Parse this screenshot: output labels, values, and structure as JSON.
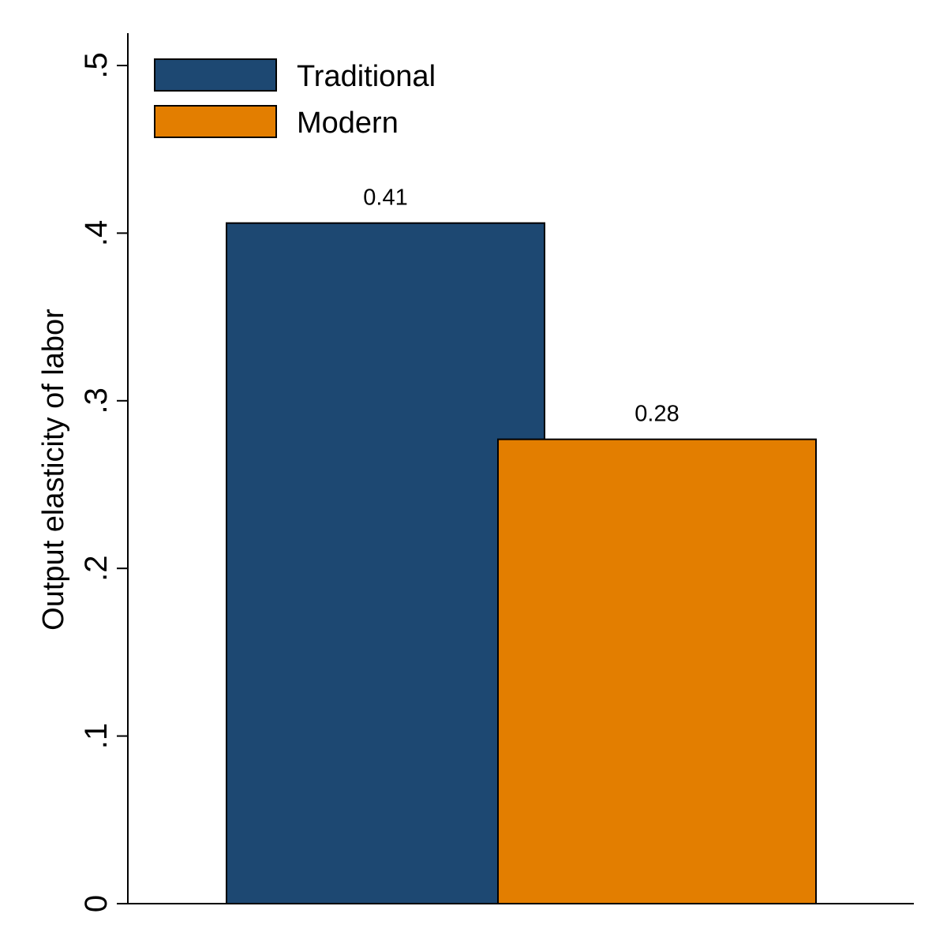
{
  "chart_data": {
    "type": "bar",
    "ylabel": "Output elasticity of labor",
    "xlabel": "",
    "ylim": [
      0,
      0.52
    ],
    "yticks": [
      {
        "value": 0,
        "label": "0"
      },
      {
        "value": 0.1,
        "label": ".1"
      },
      {
        "value": 0.2,
        "label": ".2"
      },
      {
        "value": 0.3,
        "label": ".3"
      },
      {
        "value": 0.4,
        "label": ".4"
      },
      {
        "value": 0.5,
        "label": ".5"
      }
    ],
    "grid": false,
    "legend_position": "top-left",
    "series": [
      {
        "name": "Traditional",
        "value": 0.406,
        "data_label": "0.41",
        "color": "#1d4872"
      },
      {
        "name": "Modern",
        "value": 0.277,
        "data_label": "0.28",
        "color": "#e37e00"
      }
    ]
  }
}
